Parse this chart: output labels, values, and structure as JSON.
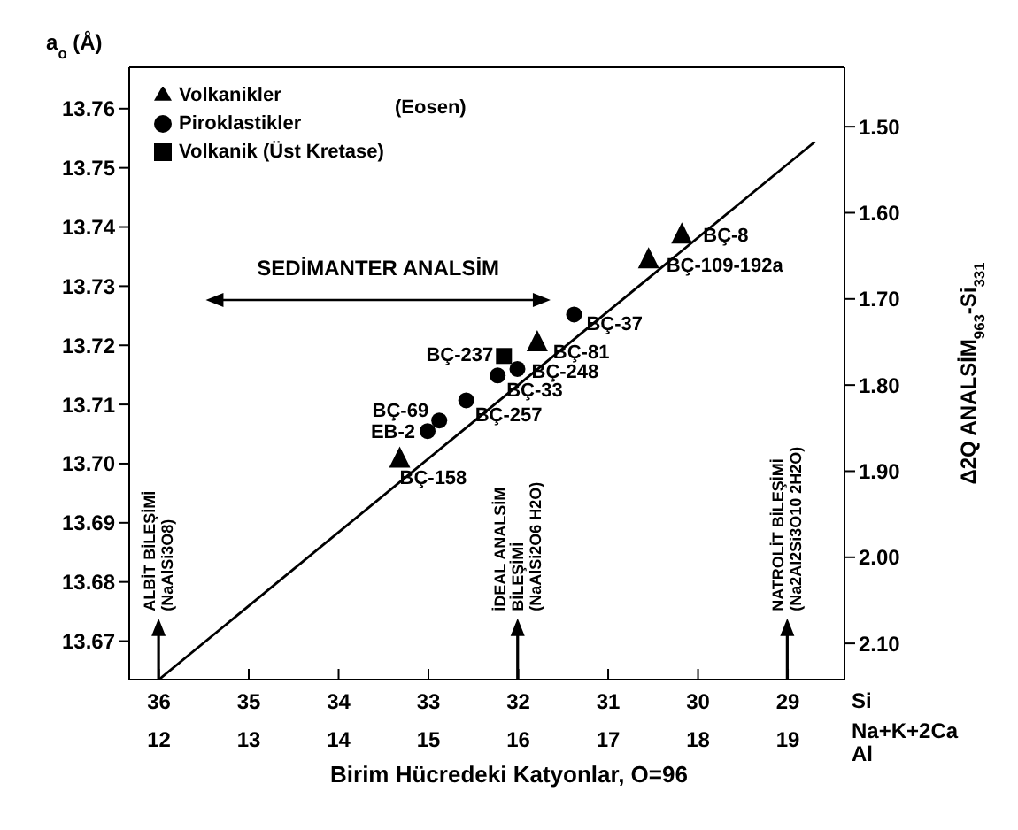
{
  "chart_data": {
    "type": "scatter",
    "ylabel": "a$_{o}$ (Å)",
    "xlabel": "Birim Hücredeki Katyonlar, O=96",
    "y2label": "Δ2Q ANALSİM$_{963}$-Si$_{331}$",
    "xlim": [
      36.33,
      28.37
    ],
    "xticks": [
      36,
      35,
      34,
      33,
      32,
      31,
      30,
      29
    ],
    "x2lim": [
      11.67,
      19.63
    ],
    "x2ticks": [
      12,
      13,
      14,
      15,
      16,
      17,
      18,
      19
    ],
    "ylim": [
      13.6635,
      13.767
    ],
    "yticks": [
      13.67,
      13.68,
      13.69,
      {
        "value": 13.7,
        "label": "13.70"
      },
      13.71,
      13.72,
      13.73,
      13.74,
      13.75,
      13.76
    ],
    "y2lim": [
      2.142,
      1.431
    ],
    "y2ticks": [
      {
        "value": 1.5,
        "label": "1.50"
      },
      {
        "value": 1.6,
        "label": "1.60"
      },
      {
        "value": 1.7,
        "label": "1.70"
      },
      {
        "value": 1.8,
        "label": "1.80"
      },
      {
        "value": 1.9,
        "label": "1.90"
      },
      {
        "value": 2,
        "label": "2.00"
      },
      {
        "value": 2.1,
        "label": "2.10"
      }
    ],
    "legend": "top left",
    "series": [
      {
        "name": "Volkanikler",
        "type": "scatter",
        "marker": "triangle",
        "color": "#000000",
        "x": [
          33.32,
          31.79,
          30.55,
          30.18
        ],
        "values": [
          13.7008,
          13.7205,
          13.7345,
          13.7387
        ],
        "value_labels": [
          "BÇ-158",
          "BÇ-81",
          "BÇ-109-192a",
          "BÇ-8"
        ]
      },
      {
        "name": "Piroklastikler",
        "type": "scatter",
        "marker": "circle",
        "color": "#000000",
        "x": [
          33.01,
          32.88,
          32.58,
          32.23,
          32.01,
          31.38
        ],
        "values": [
          13.7055,
          13.7073,
          13.7107,
          13.7149,
          13.716,
          13.7252
        ],
        "value_labels": [
          "EB-2",
          "BÇ-69",
          "BÇ-257",
          "BÇ-33",
          "BÇ-248",
          "BÇ-37"
        ]
      },
      {
        "name": "Volkanik (Üst Kretase)",
        "type": "scatter",
        "marker": "square",
        "color": "#000000",
        "x": [
          32.16
        ],
        "values": [
          13.7182
        ],
        "value_labels": [
          "BÇ-237"
        ]
      },
      {
        "type": "line",
        "marker": "none",
        "color": "#000000",
        "x": [
          36,
          28.7
        ],
        "values": [
          13.6635,
          13.7544
        ]
      }
    ],
    "annotations": [
      "(Eosen)",
      "Si",
      "Na+K+2Ca",
      "Al",
      "SEDİMANTER ANALSİM",
      "ALBİT BİLEŞİMİ\n(NaAlSi3O8)",
      "İDEAL ANALSİM\nBİLEŞİMİ\n(NaAlSi2O6 H2O)",
      "NATROLİT BİLEŞİMİ\n(Na2Al2Si3O10 2H2O)"
    ]
  }
}
